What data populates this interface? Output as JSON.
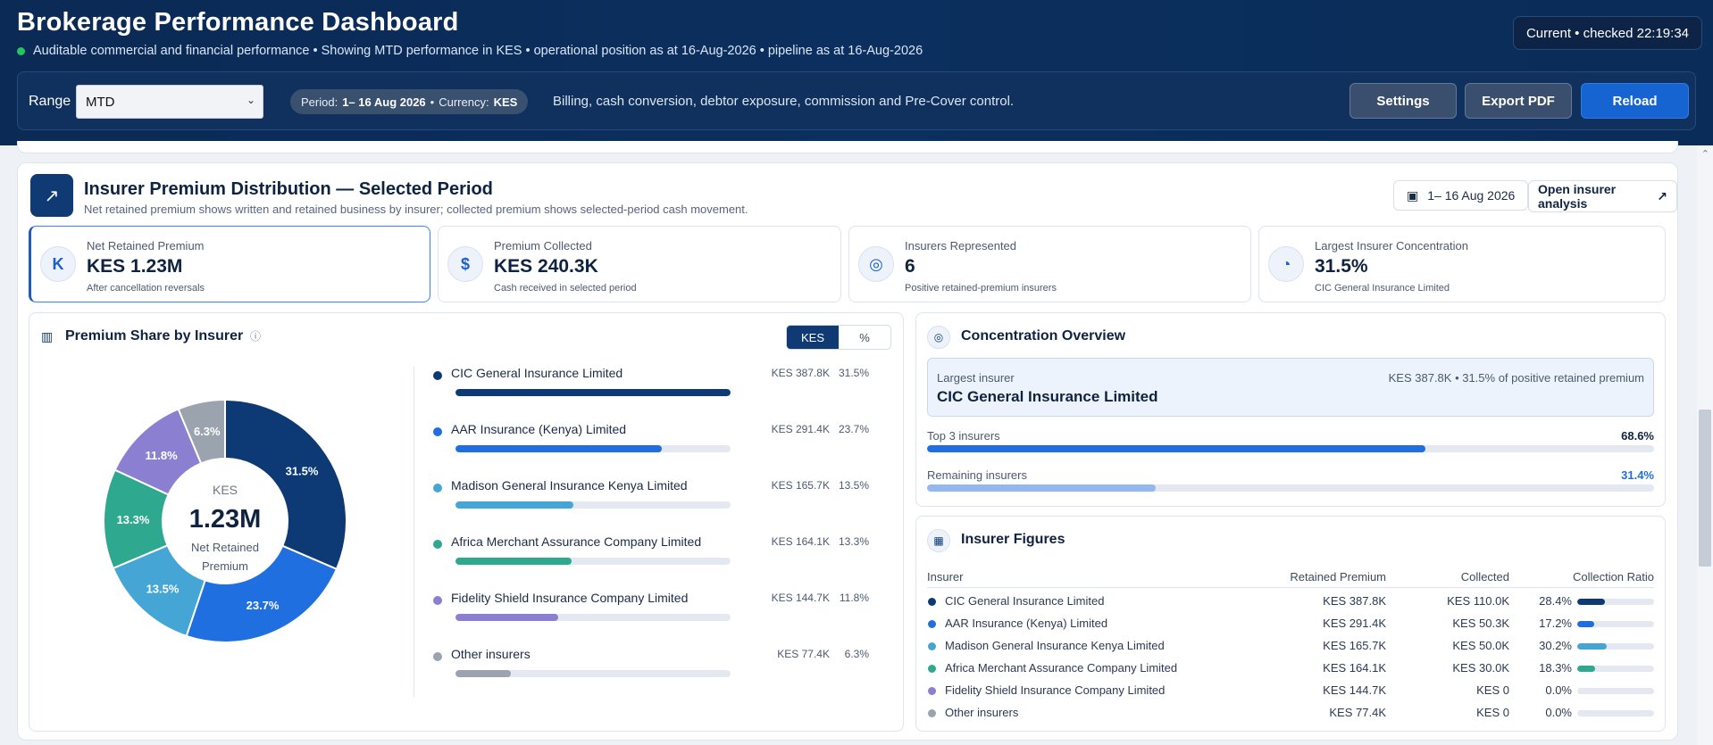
{
  "header": {
    "title": "Brokerage Performance Dashboard",
    "subtitle": "Auditable commercial and financial performance • Showing MTD performance in KES • operational position as at 16-Aug-2026 • pipeline as at 16-Aug-2026",
    "status": "Current • checked 22:19:34"
  },
  "controls": {
    "range_label": "Range",
    "range_value": "MTD",
    "period_label": "Period:",
    "period_value": "1– 16 Aug 2026",
    "currency_label": "Currency:",
    "currency_value": "KES",
    "description": "Billing, cash conversion, debtor exposure, commission and Pre-Cover control.",
    "buttons": {
      "settings": "Settings",
      "export": "Export PDF",
      "reload": "Reload"
    }
  },
  "section": {
    "title": "Insurer Premium Distribution — Selected Period",
    "subtitle": "Net retained premium shows written and retained business by insurer; collected premium shows selected-period cash movement.",
    "date_chip": "1– 16 Aug 2026",
    "open_link": "Open insurer analysis"
  },
  "kpis": [
    {
      "label": "Net Retained Premium",
      "value": "KES 1.23M",
      "note": "After cancellation reversals",
      "icon": "shilling-icon",
      "glyph": "K"
    },
    {
      "label": "Premium Collected",
      "value": "KES 240.3K",
      "note": "Cash received in selected period",
      "icon": "dollar-icon",
      "glyph": "$"
    },
    {
      "label": "Insurers Represented",
      "value": "6",
      "note": "Positive retained-premium insurers",
      "icon": "target-icon",
      "glyph": "◎"
    },
    {
      "label": "Largest Insurer Concentration",
      "value": "31.5%",
      "note": "CIC General Insurance Limited",
      "icon": "pie-icon",
      "glyph": "◔"
    }
  ],
  "share": {
    "title": "Premium Share by Insurer",
    "toggle": [
      "KES",
      "%"
    ],
    "toggle_selected": "KES",
    "center_currency": "KES",
    "center_value": "1.23M",
    "center_label": "Net Retained Premium"
  },
  "chart_data": {
    "type": "pie",
    "categories": [
      "CIC General Insurance Limited",
      "AAR Insurance (Kenya) Limited",
      "Madison General Insurance Kenya Limited",
      "Africa Merchant Assurance Company Limited",
      "Fidelity Shield Insurance Company Limited",
      "Other insurers"
    ],
    "values": [
      31.5,
      23.7,
      13.5,
      13.3,
      11.8,
      6.3
    ],
    "amounts": [
      "KES 387.8K",
      "KES 291.4K",
      "KES 165.7K",
      "KES 164.1K",
      "KES 144.7K",
      "KES 77.4K"
    ],
    "colors": [
      "#0d3a75",
      "#1f6fe0",
      "#45a6d6",
      "#2ea88f",
      "#8b7fd1",
      "#9aa3ae"
    ],
    "bar_colors": [
      "#0d3a75",
      "#1f6fe0",
      "#45a6d6",
      "#2ea88f",
      "#8b7fd1",
      "#9aa3ae"
    ],
    "bar_share_of_max": [
      1.0,
      0.75,
      0.428,
      0.423,
      0.373,
      0.2
    ]
  },
  "concentration": {
    "title": "Concentration Overview",
    "largest_label": "Largest insurer",
    "largest_name": "CIC General Insurance Limited",
    "largest_detail": "KES 387.8K • 31.5% of positive retained premium",
    "top3_label": "Top 3 insurers",
    "top3_value": "68.6%",
    "top3_fraction": 0.686,
    "remaining_label": "Remaining insurers",
    "remaining_value": "31.4%",
    "remaining_fraction": 0.314
  },
  "figures": {
    "title": "Insurer Figures",
    "columns": [
      "Insurer",
      "Retained Premium",
      "Collected",
      "Collection Ratio"
    ],
    "rows": [
      {
        "name": "CIC General Insurance Limited",
        "retained": "KES 387.8K",
        "collected": "KES 110.0K",
        "ratio": "28.4%",
        "fraction": 0.284
      },
      {
        "name": "AAR Insurance (Kenya) Limited",
        "retained": "KES 291.4K",
        "collected": "KES 50.3K",
        "ratio": "17.2%",
        "fraction": 0.172
      },
      {
        "name": "Madison General Insurance Kenya Limited",
        "retained": "KES 165.7K",
        "collected": "KES 50.0K",
        "ratio": "30.2%",
        "fraction": 0.302
      },
      {
        "name": "Africa Merchant Assurance Company Limited",
        "retained": "KES 164.1K",
        "collected": "KES 30.0K",
        "ratio": "18.3%",
        "fraction": 0.183
      },
      {
        "name": "Fidelity Shield Insurance Company Limited",
        "retained": "KES 144.7K",
        "collected": "KES 0",
        "ratio": "0.0%",
        "fraction": 0
      },
      {
        "name": "Other insurers",
        "retained": "KES 77.4K",
        "collected": "KES 0",
        "ratio": "0.0%",
        "fraction": 0
      }
    ]
  }
}
